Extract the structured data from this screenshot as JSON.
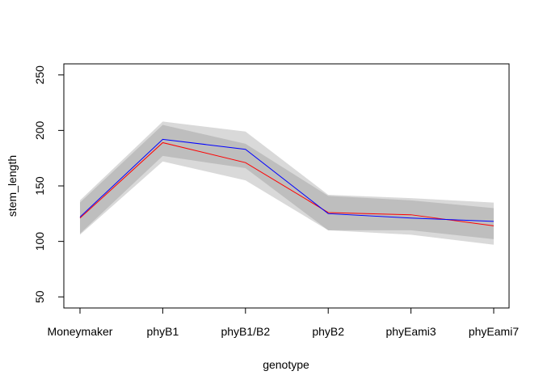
{
  "chart_data": {
    "type": "line",
    "xlabel": "genotype",
    "ylabel": "stem_length",
    "categories": [
      "Moneymaker",
      "phyB1",
      "phyB1/B2",
      "phyB2",
      "phyEami3",
      "phyEami7"
    ],
    "ylim": [
      40,
      260
    ],
    "yticks": [
      50,
      100,
      150,
      200,
      250
    ],
    "grid": false,
    "legend": "none",
    "series": [
      {
        "color": "#ff0000",
        "values": [
          121,
          189,
          171,
          126,
          124,
          114
        ]
      },
      {
        "color": "#0000ff",
        "values": [
          122,
          192,
          183,
          125,
          121,
          118
        ]
      }
    ],
    "bands": [
      {
        "color": "#d9d9d9",
        "lower": [
          106,
          172,
          155,
          110,
          106,
          97
        ],
        "upper": [
          137,
          208,
          199,
          142,
          139,
          135
        ]
      },
      {
        "color": "#bebebe",
        "lower": [
          107,
          177,
          166,
          110,
          110,
          102
        ],
        "upper": [
          135,
          205,
          188,
          141,
          137,
          130
        ]
      }
    ]
  }
}
